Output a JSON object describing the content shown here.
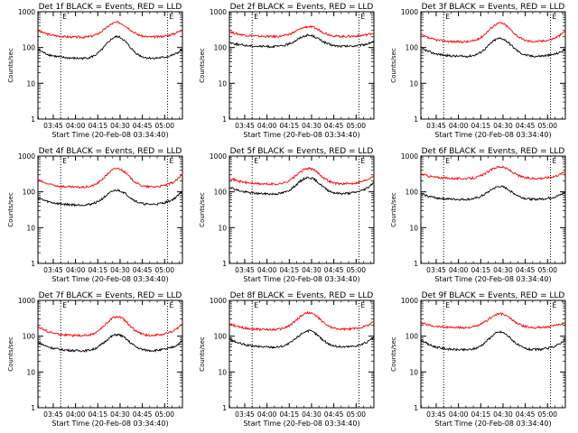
{
  "chart_data": [
    {
      "type": "line",
      "title": "Det 1f BLACK = Events, RED = LLD",
      "xlabel": "Start Time (20-Feb-08 03:34:40)",
      "ylabel": "Counts/sec",
      "yscale": "log",
      "ylim": [
        1,
        1000
      ],
      "yticks": [
        "1",
        "10",
        "100",
        "1000"
      ],
      "xticks": [
        "03:45",
        "04:00",
        "04:15",
        "04:30",
        "04:45",
        "05:00"
      ],
      "xlim": [
        "03:34:40",
        "05:12:00"
      ],
      "marker_label": "E",
      "vlines": [
        "03:50",
        "05:02"
      ],
      "series": [
        {
          "color": "#ff0000",
          "baseline": 190,
          "peak": 500,
          "start_level": 300,
          "end_level": 330
        },
        {
          "color": "#000000",
          "baseline": 48,
          "peak": 200,
          "start_level": 90,
          "end_level": 90
        }
      ]
    },
    {
      "type": "line",
      "title": "Det 2f BLACK = Events, RED = LLD",
      "xlabel": "Start Time (20-Feb-08 03:34:40)",
      "ylabel": "Counts/sec",
      "yscale": "log",
      "ylim": [
        1,
        1000
      ],
      "yticks": [
        "1",
        "10",
        "100",
        "1000"
      ],
      "xticks": [
        "03:45",
        "04:00",
        "04:15",
        "04:30",
        "04:45",
        "05:00"
      ],
      "xlim": [
        "03:34:40",
        "05:12:00"
      ],
      "marker_label": "E",
      "vlines": [
        "03:50",
        "05:02"
      ],
      "series": [
        {
          "color": "#ff0000",
          "baseline": 200,
          "peak": 380,
          "start_level": 280,
          "end_level": 260
        },
        {
          "color": "#000000",
          "baseline": 105,
          "peak": 220,
          "start_level": 140,
          "end_level": 150
        }
      ]
    },
    {
      "type": "line",
      "title": "Det 3f BLACK = Events, RED = LLD",
      "xlabel": "Start Time (20-Feb-08 03:34:40)",
      "ylabel": "Counts/sec",
      "yscale": "log",
      "ylim": [
        1,
        1000
      ],
      "yticks": [
        "1",
        "10",
        "100",
        "1000"
      ],
      "xticks": [
        "03:45",
        "04:00",
        "04:15",
        "04:30",
        "04:45",
        "05:00"
      ],
      "xlim": [
        "03:34:40",
        "05:12:00"
      ],
      "marker_label": "E",
      "vlines": [
        "03:50",
        "05:02"
      ],
      "series": [
        {
          "color": "#ff0000",
          "baseline": 140,
          "peak": 480,
          "start_level": 230,
          "end_level": 300
        },
        {
          "color": "#000000",
          "baseline": 55,
          "peak": 180,
          "start_level": 100,
          "end_level": 90
        }
      ]
    },
    {
      "type": "line",
      "title": "Det 4f BLACK = Events, RED = LLD",
      "xlabel": "Start Time (20-Feb-08 03:34:40)",
      "ylabel": "Counts/sec",
      "yscale": "log",
      "ylim": [
        1,
        1000
      ],
      "yticks": [
        "1",
        "10",
        "100",
        "1000"
      ],
      "xticks": [
        "03:45",
        "04:00",
        "04:15",
        "04:30",
        "04:45",
        "05:00"
      ],
      "xlim": [
        "03:34:40",
        "05:12:00"
      ],
      "marker_label": "E",
      "vlines": [
        "03:50",
        "05:02"
      ],
      "series": [
        {
          "color": "#ff0000",
          "baseline": 130,
          "peak": 450,
          "start_level": 220,
          "end_level": 310
        },
        {
          "color": "#000000",
          "baseline": 42,
          "peak": 110,
          "start_level": 70,
          "end_level": 110
        }
      ]
    },
    {
      "type": "line",
      "title": "Det 5f BLACK = Events, RED = LLD",
      "xlabel": "Start Time (20-Feb-08 03:34:40)",
      "ylabel": "Counts/sec",
      "yscale": "log",
      "ylim": [
        1,
        1000
      ],
      "yticks": [
        "1",
        "10",
        "100",
        "1000"
      ],
      "xticks": [
        "03:45",
        "04:00",
        "04:15",
        "04:30",
        "04:45",
        "05:00"
      ],
      "xlim": [
        "03:34:40",
        "05:12:00"
      ],
      "marker_label": "E",
      "vlines": [
        "03:50",
        "05:02"
      ],
      "series": [
        {
          "color": "#ff0000",
          "baseline": 160,
          "peak": 450,
          "start_level": 250,
          "end_level": 300
        },
        {
          "color": "#000000",
          "baseline": 85,
          "peak": 250,
          "start_level": 140,
          "end_level": 190
        }
      ]
    },
    {
      "type": "line",
      "title": "Det 6f BLACK = Events, RED = LLD",
      "xlabel": "Start Time (20-Feb-08 03:34:40)",
      "ylabel": "Counts/sec",
      "yscale": "log",
      "ylim": [
        1,
        1000
      ],
      "yticks": [
        "1",
        "10",
        "100",
        "1000"
      ],
      "xticks": [
        "03:45",
        "04:00",
        "04:15",
        "04:30",
        "04:45",
        "05:00"
      ],
      "xlim": [
        "03:34:40",
        "05:12:00"
      ],
      "marker_label": "E",
      "vlines": [
        "03:50",
        "05:02"
      ],
      "series": [
        {
          "color": "#ff0000",
          "baseline": 230,
          "peak": 500,
          "start_level": 320,
          "end_level": 380
        },
        {
          "color": "#000000",
          "baseline": 60,
          "peak": 140,
          "start_level": 90,
          "end_level": 100
        }
      ]
    },
    {
      "type": "line",
      "title": "Det 7f BLACK = Events, RED = LLD",
      "xlabel": "Start Time (20-Feb-08 03:34:40)",
      "ylabel": "Counts/sec",
      "yscale": "log",
      "ylim": [
        1,
        1000
      ],
      "yticks": [
        "1",
        "10",
        "100",
        "1000"
      ],
      "xticks": [
        "03:45",
        "04:00",
        "04:15",
        "04:30",
        "04:45",
        "05:00"
      ],
      "xlim": [
        "03:34:40",
        "05:12:00"
      ],
      "marker_label": "E",
      "vlines": [
        "03:50",
        "05:02"
      ],
      "series": [
        {
          "color": "#ff0000",
          "baseline": 100,
          "peak": 350,
          "start_level": 190,
          "end_level": 230
        },
        {
          "color": "#000000",
          "baseline": 38,
          "peak": 110,
          "start_level": 70,
          "end_level": 75
        }
      ]
    },
    {
      "type": "line",
      "title": "Det 8f BLACK = Events, RED = LLD",
      "xlabel": "Start Time (20-Feb-08 03:34:40)",
      "ylabel": "Counts/sec",
      "yscale": "log",
      "ylim": [
        1,
        1000
      ],
      "yticks": [
        "1",
        "10",
        "100",
        "1000"
      ],
      "xticks": [
        "03:45",
        "04:00",
        "04:15",
        "04:30",
        "04:45",
        "05:00"
      ],
      "xlim": [
        "03:34:40",
        "05:12:00"
      ],
      "marker_label": "E",
      "vlines": [
        "03:50",
        "05:02"
      ],
      "series": [
        {
          "color": "#ff0000",
          "baseline": 150,
          "peak": 450,
          "start_level": 220,
          "end_level": 260
        },
        {
          "color": "#000000",
          "baseline": 48,
          "peak": 140,
          "start_level": 85,
          "end_level": 95
        }
      ]
    },
    {
      "type": "line",
      "title": "Det 9f BLACK = Events, RED = LLD",
      "xlabel": "Start Time (20-Feb-08 03:34:40)",
      "ylabel": "Counts/sec",
      "yscale": "log",
      "ylim": [
        1,
        1000
      ],
      "yticks": [
        "1",
        "10",
        "100",
        "1000"
      ],
      "xticks": [
        "03:45",
        "04:00",
        "04:15",
        "04:30",
        "04:45",
        "05:00"
      ],
      "xlim": [
        "03:34:40",
        "05:12:00"
      ],
      "marker_label": "E",
      "vlines": [
        "03:50",
        "05:02"
      ],
      "series": [
        {
          "color": "#ff0000",
          "baseline": 170,
          "peak": 420,
          "start_level": 240,
          "end_level": 250
        },
        {
          "color": "#000000",
          "baseline": 40,
          "peak": 130,
          "start_level": 80,
          "end_level": 85
        }
      ]
    }
  ]
}
